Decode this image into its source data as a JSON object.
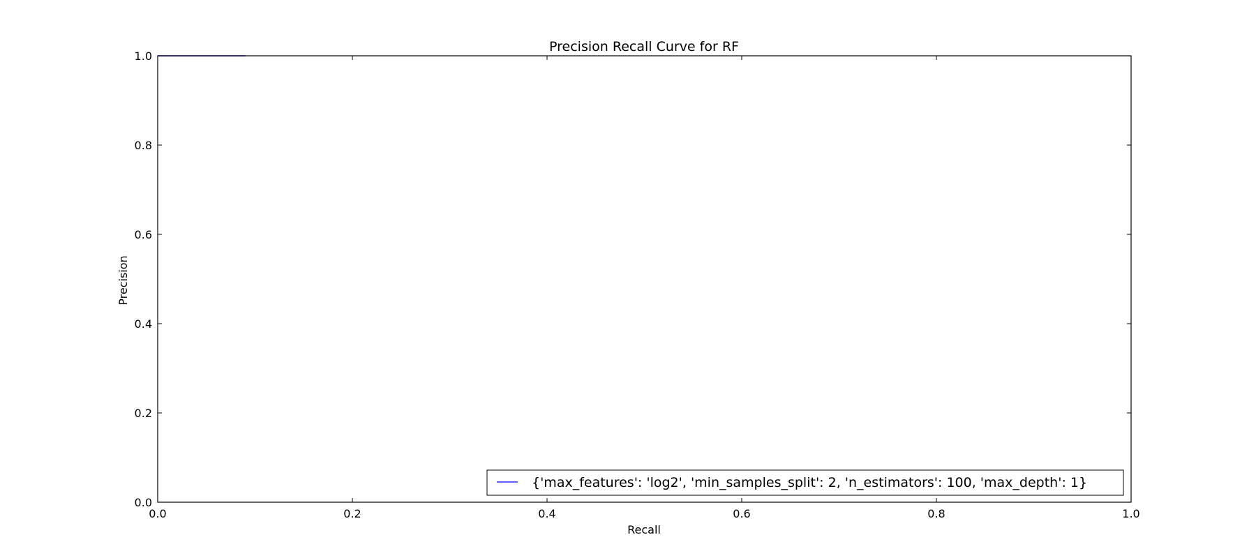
{
  "chart_data": {
    "type": "line",
    "title": "Precision Recall Curve for RF",
    "xlabel": "Recall",
    "ylabel": "Precision",
    "xlim": [
      0.0,
      1.0
    ],
    "ylim": [
      0.0,
      1.0
    ],
    "xticks": [
      0.0,
      0.2,
      0.4,
      0.6,
      0.8,
      1.0
    ],
    "yticks": [
      0.0,
      0.2,
      0.4,
      0.6,
      0.8,
      1.0
    ],
    "xtick_labels": [
      "0.0",
      "0.2",
      "0.4",
      "0.6",
      "0.8",
      "1.0"
    ],
    "ytick_labels": [
      "0.0",
      "0.2",
      "0.4",
      "0.6",
      "0.8",
      "1.0"
    ],
    "grid": false,
    "legend_position": "lower-right",
    "series": [
      {
        "name": "{'max_features': 'log2', 'min_samples_split': 2, 'n_estimators': 100, 'max_depth': 1}",
        "color": "#0000ff",
        "x": [
          0.0,
          0.09
        ],
        "y": [
          1.0,
          1.0
        ]
      }
    ]
  }
}
